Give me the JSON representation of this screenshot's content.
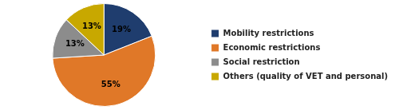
{
  "chart_data": {
    "type": "pie",
    "categories": [
      "Mobility restrictions",
      "Economic restrictions",
      "Social restriction",
      "Others (quality of VET and personal)"
    ],
    "values": [
      19,
      55,
      13,
      13
    ],
    "value_labels": [
      "19%",
      "55%",
      "13%",
      "13%"
    ],
    "data_labels": true,
    "colors": [
      "#1F3D6E",
      "#E07828",
      "#8C8C8C",
      "#C8A800"
    ],
    "legend": "right"
  }
}
